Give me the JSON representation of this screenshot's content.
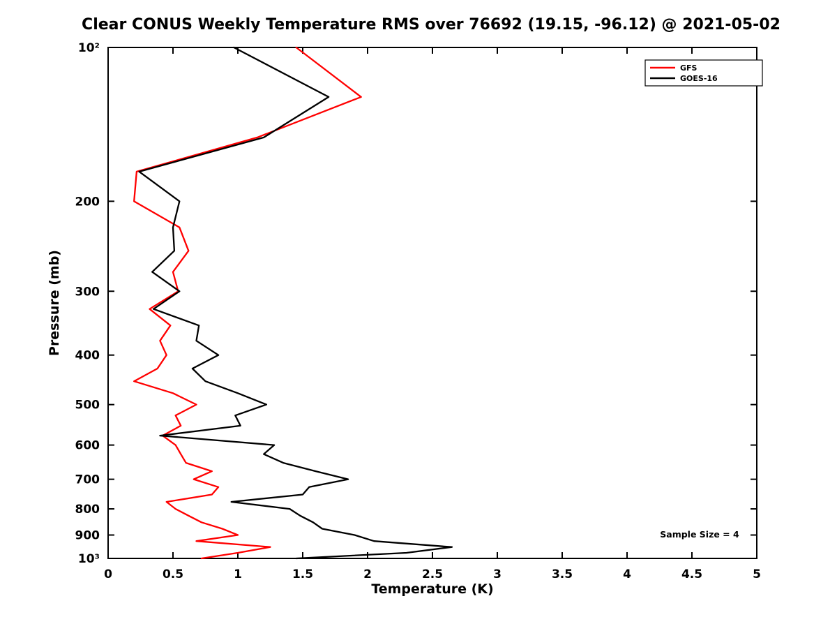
{
  "chart_data": {
    "type": "line",
    "title": "Clear CONUS Weekly Temperature RMS over 76692 (19.15, -96.12) @ 2021-05-02",
    "xlabel": "Temperature (K)",
    "ylabel": "Pressure (mb)",
    "xlim": [
      0,
      5
    ],
    "x_ticks": [
      0,
      0.5,
      1,
      1.5,
      2,
      2.5,
      3,
      3.5,
      4,
      4.5,
      5
    ],
    "x_tick_labels": [
      "0",
      "0.5",
      "1",
      "1.5",
      "2",
      "2.5",
      "3",
      "3.5",
      "4",
      "4.5",
      "5"
    ],
    "y_scale": "log",
    "y_inverted": true,
    "ylim": [
      100,
      1000
    ],
    "y_ticks": [
      100,
      200,
      300,
      400,
      500,
      600,
      700,
      800,
      900,
      1000
    ],
    "y_tick_labels": [
      "10²",
      "200",
      "300",
      "400",
      "500",
      "600",
      "700",
      "800",
      "900",
      "10³"
    ],
    "grid": false,
    "legend_position": "top-right",
    "annotation": "Sample Size = 4",
    "pressure_levels_mb": [
      100,
      125,
      150,
      175,
      200,
      225,
      250,
      275,
      300,
      325,
      350,
      375,
      400,
      425,
      450,
      475,
      500,
      525,
      550,
      575,
      600,
      625,
      650,
      675,
      700,
      725,
      750,
      775,
      800,
      825,
      850,
      875,
      900,
      925,
      950,
      975,
      1000
    ],
    "series": [
      {
        "name": "GFS",
        "color": "#ff0000",
        "values": [
          1.45,
          1.95,
          1.15,
          0.22,
          0.2,
          0.55,
          0.62,
          0.5,
          0.54,
          0.32,
          0.48,
          0.4,
          0.45,
          0.38,
          0.2,
          0.5,
          0.68,
          0.52,
          0.56,
          0.42,
          0.52,
          0.56,
          0.6,
          0.8,
          0.66,
          0.85,
          0.8,
          0.45,
          0.52,
          0.62,
          0.72,
          0.88,
          1.0,
          0.68,
          1.25,
          1.0,
          0.72
        ]
      },
      {
        "name": "GOES-16",
        "color": "#000000",
        "values": [
          0.97,
          1.7,
          1.2,
          0.24,
          0.55,
          0.5,
          0.51,
          0.34,
          0.55,
          0.35,
          0.7,
          0.68,
          0.85,
          0.65,
          0.75,
          1.0,
          1.22,
          0.98,
          1.02,
          0.4,
          1.28,
          1.2,
          1.35,
          1.6,
          1.85,
          1.55,
          1.5,
          0.95,
          1.4,
          1.48,
          1.58,
          1.65,
          1.9,
          2.05,
          2.65,
          2.3,
          1.45
        ]
      }
    ],
    "axis_color": "#000000",
    "background_color": "#ffffff"
  }
}
